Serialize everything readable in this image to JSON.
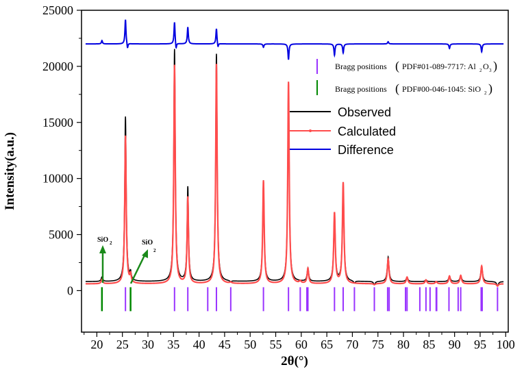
{
  "chart_data": {
    "type": "line",
    "xlabel": "2θ(°)",
    "ylabel": "Intensity(a.u.)",
    "xlim": [
      17,
      100.5
    ],
    "ylim": [
      -3700,
      25000
    ],
    "xticks": [
      20,
      25,
      30,
      35,
      40,
      45,
      50,
      55,
      60,
      65,
      70,
      75,
      80,
      85,
      90,
      95,
      100
    ],
    "yticks": [
      0,
      5000,
      10000,
      15000,
      20000,
      25000
    ],
    "background_observed": 800,
    "background_calculated": 600,
    "difference_baseline": 22000,
    "series": [
      {
        "name": "Observed",
        "color": "#000000"
      },
      {
        "name": "Calculated",
        "color": "#ff4c4c"
      },
      {
        "name": "Difference",
        "color": "#0000e0"
      }
    ],
    "peaks": [
      {
        "x": 21.0,
        "observed": 1200,
        "calculated": 1000,
        "width": 0.18
      },
      {
        "x": 25.6,
        "observed": 15500,
        "calculated": 13800,
        "width": 0.17
      },
      {
        "x": 26.6,
        "observed": 1450,
        "calculated": 1300,
        "width": 0.15
      },
      {
        "x": 35.2,
        "observed": 21500,
        "calculated": 20100,
        "width": 0.17
      },
      {
        "x": 37.8,
        "observed": 9200,
        "calculated": 8300,
        "width": 0.16
      },
      {
        "x": 43.4,
        "observed": 21100,
        "calculated": 20200,
        "width": 0.17
      },
      {
        "x": 46.2,
        "observed": 700,
        "calculated": 700,
        "width": 0.2
      },
      {
        "x": 52.6,
        "observed": 9800,
        "calculated": 9800,
        "width": 0.17
      },
      {
        "x": 57.5,
        "observed": 18600,
        "calculated": 18600,
        "width": 0.17
      },
      {
        "x": 59.8,
        "observed": 800,
        "calculated": 800,
        "width": 0.2
      },
      {
        "x": 61.3,
        "observed": 2000,
        "calculated": 1950,
        "width": 0.18
      },
      {
        "x": 66.5,
        "observed": 6900,
        "calculated": 6900,
        "width": 0.18
      },
      {
        "x": 68.2,
        "observed": 9600,
        "calculated": 9600,
        "width": 0.18
      },
      {
        "x": 70.4,
        "observed": 600,
        "calculated": 600,
        "width": 0.2
      },
      {
        "x": 74.3,
        "observed": 500,
        "calculated": 500,
        "width": 0.2
      },
      {
        "x": 77.0,
        "observed": 3000,
        "calculated": 2800,
        "width": 0.2
      },
      {
        "x": 80.7,
        "observed": 1200,
        "calculated": 1200,
        "width": 0.2
      },
      {
        "x": 84.4,
        "observed": 950,
        "calculated": 950,
        "width": 0.2
      },
      {
        "x": 86.4,
        "observed": 800,
        "calculated": 800,
        "width": 0.2
      },
      {
        "x": 89.0,
        "observed": 1300,
        "calculated": 1300,
        "width": 0.2
      },
      {
        "x": 91.2,
        "observed": 1350,
        "calculated": 1350,
        "width": 0.2
      },
      {
        "x": 95.3,
        "observed": 2200,
        "calculated": 2200,
        "width": 0.2
      },
      {
        "x": 98.4,
        "observed": 400,
        "calculated": 400,
        "width": 0.2
      }
    ],
    "difference_spikes": [
      {
        "x": 21.0,
        "value": 300
      },
      {
        "x": 25.6,
        "value": 2200
      },
      {
        "x": 26.0,
        "value": -500
      },
      {
        "x": 35.2,
        "value": 2000
      },
      {
        "x": 35.5,
        "value": -600
      },
      {
        "x": 37.8,
        "value": 1500
      },
      {
        "x": 43.4,
        "value": 1400
      },
      {
        "x": 43.7,
        "value": -400
      },
      {
        "x": 52.6,
        "value": -300
      },
      {
        "x": 57.5,
        "value": -1400
      },
      {
        "x": 66.5,
        "value": -1000
      },
      {
        "x": 68.2,
        "value": -800
      },
      {
        "x": 77.0,
        "value": 200
      },
      {
        "x": 89.0,
        "value": -400
      },
      {
        "x": 95.3,
        "value": -700
      }
    ],
    "bragg_positions_al2o3": [
      25.6,
      35.2,
      37.8,
      41.7,
      43.4,
      46.2,
      52.6,
      57.5,
      59.8,
      61.1,
      61.3,
      66.5,
      68.2,
      70.4,
      74.3,
      76.9,
      77.2,
      80.4,
      80.7,
      83.2,
      84.4,
      85.2,
      86.4,
      86.5,
      88.9,
      90.7,
      91.2,
      95.2,
      95.4,
      98.4
    ],
    "bragg_positions_sio2": [
      21.0,
      26.6
    ],
    "legend": {
      "observed": "Observed",
      "calculated": "Calculated",
      "difference": "Difference",
      "bragg_al2o3": "Bragg positions",
      "bragg_al2o3_ref": "PDF#01-089-7717: Al",
      "bragg_sio2": "Bragg positions",
      "bragg_sio2_ref": "PDF#00-046-1045: SiO",
      "open_paren": "(",
      "close_paren": ")",
      "sub_2": "2",
      "sub_3": "3",
      "o_letter": "O",
      "color_al2o3": "#9933ff",
      "color_sio2": "#008800"
    },
    "annotations": [
      {
        "text": "SiO",
        "sub": "2",
        "x": 21.0
      },
      {
        "text": "SiO",
        "sub": "2",
        "x": 26.6
      }
    ]
  }
}
